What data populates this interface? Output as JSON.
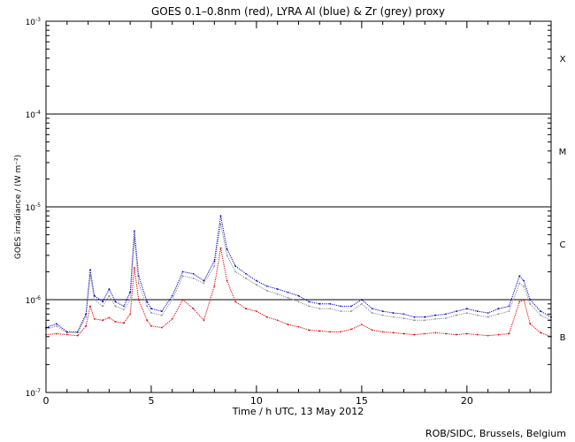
{
  "chart_data": {
    "type": "scatter",
    "title": "GOES 0.1–0.8nm (red), LYRA Al (blue) & Zr (grey) proxy",
    "xlabel": "Time / h UTC, 13 May 2012",
    "ylabel": "GOES irradiance / (W m⁻²)",
    "xlim": [
      0,
      24
    ],
    "ylim": [
      1e-07,
      0.001
    ],
    "yscale": "log",
    "x_ticks": [
      0,
      5,
      10,
      15,
      20
    ],
    "y_ticks": [
      {
        "value": 1e-07,
        "mantissa": "10",
        "exponent": "-7"
      },
      {
        "value": 1e-06,
        "mantissa": "10",
        "exponent": "-6"
      },
      {
        "value": 1e-05,
        "mantissa": "10",
        "exponent": "-5"
      },
      {
        "value": 0.0001,
        "mantissa": "10",
        "exponent": "-4"
      },
      {
        "value": 0.001,
        "mantissa": "10",
        "exponent": "-3"
      }
    ],
    "class_levels": [
      1e-06,
      1e-05,
      0.0001
    ],
    "flare_classes": [
      {
        "label": "B",
        "value": 4e-07
      },
      {
        "label": "C",
        "value": 4e-06
      },
      {
        "label": "M",
        "value": 4e-05
      },
      {
        "label": "X",
        "value": 0.0004
      }
    ],
    "series": [
      {
        "name": "GOES 0.1–0.8nm",
        "color": "#e00000",
        "x": [
          0.0,
          0.5,
          1.0,
          1.5,
          1.9,
          2.1,
          2.3,
          2.7,
          3.0,
          3.3,
          3.7,
          4.0,
          4.2,
          4.4,
          4.8,
          5.0,
          5.5,
          6.0,
          6.5,
          7.0,
          7.5,
          8.0,
          8.3,
          8.6,
          9.0,
          9.5,
          10.0,
          10.5,
          11.0,
          11.5,
          12.0,
          12.5,
          13.0,
          13.5,
          14.0,
          14.5,
          15.0,
          15.5,
          16.0,
          16.5,
          17.0,
          17.5,
          18.0,
          18.5,
          19.0,
          19.5,
          20.0,
          20.5,
          21.0,
          21.5,
          22.0,
          22.5,
          22.7,
          23.0,
          23.5,
          24.0
        ],
        "y": [
          4.2e-07,
          4.3e-07,
          4.2e-07,
          4.1e-07,
          5.2e-07,
          8.5e-07,
          6.2e-07,
          6e-07,
          6.4e-07,
          5.8e-07,
          5.6e-07,
          7e-07,
          2.2e-06,
          1e-06,
          6e-07,
          5.2e-07,
          5e-07,
          6.2e-07,
          1e-06,
          8e-07,
          6e-07,
          1.4e-06,
          3.6e-06,
          1.6e-06,
          9.5e-07,
          8e-07,
          7.5e-07,
          6.5e-07,
          6e-07,
          5.4e-07,
          5.1e-07,
          4.7e-07,
          4.6e-07,
          4.5e-07,
          4.5e-07,
          4.8e-07,
          5.4e-07,
          4.7e-07,
          4.5e-07,
          4.4e-07,
          4.3e-07,
          4.2e-07,
          4.3e-07,
          4.4e-07,
          4.3e-07,
          4.2e-07,
          4.3e-07,
          4.2e-07,
          4.1e-07,
          4.2e-07,
          4.3e-07,
          9.5e-07,
          1e-06,
          5.5e-07,
          4.4e-07,
          4e-07
        ]
      },
      {
        "name": "LYRA Al proxy",
        "color": "#0000c8",
        "x": [
          0.0,
          0.5,
          1.0,
          1.5,
          1.9,
          2.1,
          2.3,
          2.7,
          3.0,
          3.3,
          3.7,
          4.0,
          4.2,
          4.4,
          4.8,
          5.0,
          5.5,
          6.0,
          6.5,
          7.0,
          7.5,
          8.0,
          8.3,
          8.6,
          9.0,
          9.5,
          10.0,
          10.5,
          11.0,
          11.5,
          12.0,
          12.5,
          13.0,
          13.5,
          14.0,
          14.5,
          15.0,
          15.5,
          16.0,
          16.5,
          17.0,
          17.5,
          18.0,
          18.5,
          19.0,
          19.5,
          20.0,
          20.5,
          21.0,
          21.5,
          22.0,
          22.5,
          22.7,
          23.0,
          23.5,
          24.0
        ],
        "y": [
          5e-07,
          5.5e-07,
          4.5e-07,
          4.5e-07,
          7e-07,
          2.1e-06,
          1.1e-06,
          9.5e-07,
          1.3e-06,
          9.5e-07,
          8.5e-07,
          1.2e-06,
          5.5e-06,
          1.8e-06,
          9.5e-07,
          8e-07,
          7.5e-07,
          1.1e-06,
          2e-06,
          1.9e-06,
          1.6e-06,
          2.6e-06,
          8e-06,
          3.5e-06,
          2.3e-06,
          1.9e-06,
          1.6e-06,
          1.4e-06,
          1.3e-06,
          1.2e-06,
          1.1e-06,
          9.5e-07,
          9e-07,
          9e-07,
          8.5e-07,
          8.5e-07,
          1e-06,
          8e-07,
          7.5e-07,
          7.2e-07,
          7e-07,
          6.5e-07,
          6.5e-07,
          6.8e-07,
          7e-07,
          7.5e-07,
          8e-07,
          7.5e-07,
          7.2e-07,
          8e-07,
          8.5e-07,
          1.8e-06,
          1.6e-06,
          1e-06,
          7.5e-07,
          6.5e-07
        ]
      },
      {
        "name": "LYRA Zr proxy",
        "color": "#8c8c8c",
        "x": [
          0.0,
          0.5,
          1.0,
          1.5,
          1.9,
          2.1,
          2.3,
          2.7,
          3.0,
          3.3,
          3.7,
          4.0,
          4.2,
          4.4,
          4.8,
          5.0,
          5.5,
          6.0,
          6.5,
          7.0,
          7.5,
          8.0,
          8.3,
          8.6,
          9.0,
          9.5,
          10.0,
          10.5,
          11.0,
          11.5,
          12.0,
          12.5,
          13.0,
          13.5,
          14.0,
          14.5,
          15.0,
          15.5,
          16.0,
          16.5,
          17.0,
          17.5,
          18.0,
          18.5,
          19.0,
          19.5,
          20.0,
          20.5,
          21.0,
          21.5,
          22.0,
          22.5,
          22.7,
          23.0,
          23.5,
          24.0
        ],
        "y": [
          4.8e-07,
          5.2e-07,
          4.4e-07,
          4.4e-07,
          6.5e-07,
          1.8e-06,
          1e-06,
          8.5e-07,
          1.1e-06,
          8.5e-07,
          7.8e-07,
          1e-06,
          4.5e-06,
          1.5e-06,
          8.5e-07,
          7.2e-07,
          6.8e-07,
          1e-06,
          1.8e-06,
          1.7e-06,
          1.5e-06,
          2.3e-06,
          6.5e-06,
          3e-06,
          2e-06,
          1.7e-06,
          1.45e-06,
          1.25e-06,
          1.15e-06,
          1.05e-06,
          9.5e-07,
          8.5e-07,
          8e-07,
          8e-07,
          7.5e-07,
          7.5e-07,
          9e-07,
          7.2e-07,
          6.8e-07,
          6.5e-07,
          6.3e-07,
          6e-07,
          6e-07,
          6.2e-07,
          6.3e-07,
          6.8e-07,
          7.2e-07,
          6.8e-07,
          6.5e-07,
          7e-07,
          7.5e-07,
          1.5e-06,
          1.4e-06,
          9e-07,
          6.8e-07,
          6e-07
        ]
      }
    ],
    "grid": false,
    "legend": "none"
  },
  "footer": {
    "credit": "ROB/SIDC, Brussels, Belgium"
  }
}
